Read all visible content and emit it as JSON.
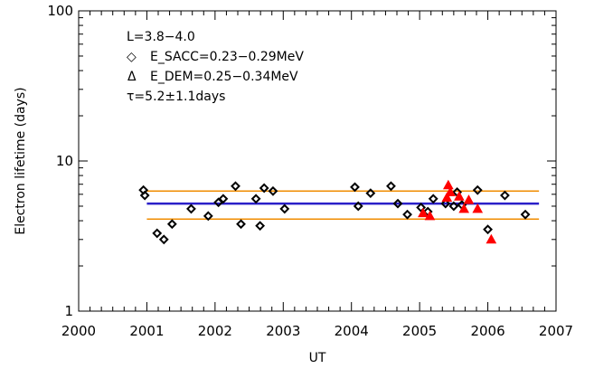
{
  "chart_data": {
    "type": "scatter",
    "xlabel": "UT",
    "ylabel": "Electron lifetime (days)",
    "xlim": [
      2000,
      2007
    ],
    "ylim": [
      1,
      100
    ],
    "yscale": "log",
    "x_ticks": [
      "2000",
      "2001",
      "2002",
      "2003",
      "2004",
      "2005",
      "2006",
      "2007"
    ],
    "y_ticks": [
      "1",
      "10",
      "100"
    ],
    "legend": {
      "line1": "L=3.8−4.0",
      "line2_symbol": "◇",
      "line2": "E_SACC=0.23−0.29MeV",
      "line3_symbol": "Δ",
      "line3": "E_DEM=0.25−0.34MeV",
      "line4": "τ=5.2±1.1days"
    },
    "fit": {
      "mean": 5.2,
      "upper": 6.3,
      "lower": 4.1,
      "mean_color": "#2a1fc8",
      "band_color": "#f08c00",
      "x_start": 2001.0,
      "x_end": 2006.75
    },
    "series": [
      {
        "name": "E_SACC=0.23−0.29MeV",
        "marker": "diamond",
        "color": "#000000",
        "points": [
          [
            2000.95,
            6.4
          ],
          [
            2000.97,
            5.9
          ],
          [
            2001.15,
            3.3
          ],
          [
            2001.25,
            3.0
          ],
          [
            2001.37,
            3.8
          ],
          [
            2001.65,
            4.8
          ],
          [
            2001.9,
            4.3
          ],
          [
            2002.05,
            5.3
          ],
          [
            2002.12,
            5.6
          ],
          [
            2002.3,
            6.8
          ],
          [
            2002.38,
            3.8
          ],
          [
            2002.6,
            5.6
          ],
          [
            2002.66,
            3.7
          ],
          [
            2002.72,
            6.6
          ],
          [
            2002.85,
            6.3
          ],
          [
            2003.02,
            4.8
          ],
          [
            2004.05,
            6.7
          ],
          [
            2004.1,
            5.0
          ],
          [
            2004.28,
            6.1
          ],
          [
            2004.58,
            6.8
          ],
          [
            2004.68,
            5.2
          ],
          [
            2004.82,
            4.4
          ],
          [
            2005.02,
            4.9
          ],
          [
            2005.12,
            4.6
          ],
          [
            2005.2,
            5.6
          ],
          [
            2005.38,
            5.2
          ],
          [
            2005.5,
            5.0
          ],
          [
            2005.55,
            6.2
          ],
          [
            2005.62,
            5.1
          ],
          [
            2005.85,
            6.4
          ],
          [
            2006.0,
            3.5
          ],
          [
            2006.25,
            5.9
          ],
          [
            2006.55,
            4.4
          ]
        ]
      },
      {
        "name": "E_DEM=0.25−0.34MeV",
        "marker": "triangle",
        "color": "#ff0000",
        "points": [
          [
            2005.05,
            4.5
          ],
          [
            2005.15,
            4.3
          ],
          [
            2005.4,
            5.7
          ],
          [
            2005.42,
            6.9
          ],
          [
            2005.45,
            6.2
          ],
          [
            2005.58,
            5.8
          ],
          [
            2005.65,
            4.8
          ],
          [
            2005.72,
            5.5
          ],
          [
            2005.85,
            4.8
          ],
          [
            2006.05,
            3.0
          ]
        ]
      }
    ]
  }
}
